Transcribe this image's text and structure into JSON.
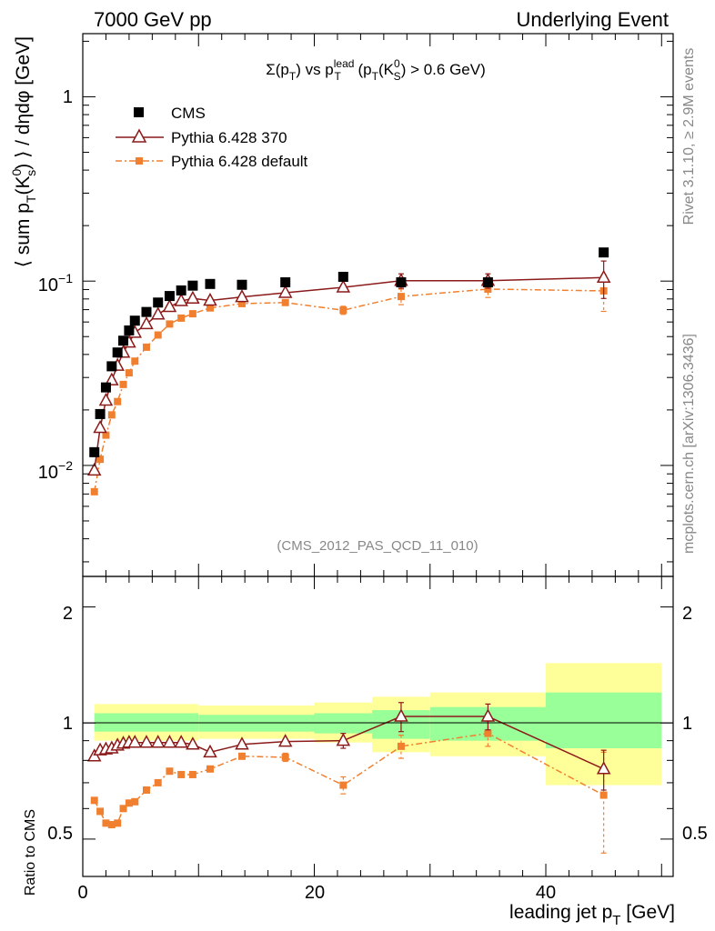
{
  "header": {
    "left": "7000 GeV pp",
    "right": "Underlying Event"
  },
  "side": {
    "rivet": "Rivet 3.1.10, ≥ 2.9M events",
    "mcplots": "mcplots.cern.ch [arXiv:1306.3436]"
  },
  "plot_title": {
    "sigma": "Σ(p",
    "sub_T": "T",
    "vs": ") vs p",
    "sup_lead": "lead",
    "paren": " (p",
    "K": "(K",
    "sup_0": "0",
    "sub_S": "S",
    "tail": ") > 0.6 GeV)"
  },
  "ylabel": {
    "pre": "⟨ sum p",
    "sub_T": "T",
    "K": "(K",
    "sup_0": "0",
    "sub_s": "s",
    "post": ") ⟩ / dηdφ [GeV]"
  },
  "xlabel": {
    "pre": "leading jet p",
    "sub_T": "T",
    "post": " [GeV]"
  },
  "ratio_ylabel": "Ratio to CMS",
  "watermark": "(CMS_2012_PAS_QCD_11_010)",
  "ticks": {
    "x": [
      "0",
      "20",
      "40"
    ],
    "main_y_1": "1",
    "main_y_base": "10",
    "main_y_exp1": "−1",
    "main_y_exp2": "−2",
    "ratio_y": [
      "0.5",
      "1",
      "2"
    ]
  },
  "legend": [
    {
      "label": "CMS",
      "color": "#000000",
      "marker": "square"
    },
    {
      "label": "Pythia 6.428 370",
      "color": "#8b1a1a",
      "marker": "open-triangle"
    },
    {
      "label": "Pythia 6.428 default",
      "color": "#f08030",
      "marker": "small-square",
      "dash": "dash-dot"
    }
  ],
  "chart_data": {
    "type": "scatter",
    "x_range": [
      0,
      51
    ],
    "main_y_range": [
      0.0025,
      2.2
    ],
    "main_y_scale": "log",
    "ratio_y_range": [
      0.4,
      2.4
    ],
    "ratio_y_scale": "log",
    "x": [
      1.0,
      1.5,
      2.0,
      2.5,
      3.0,
      3.5,
      4.0,
      4.5,
      5.5,
      6.5,
      7.5,
      8.5,
      9.5,
      11.0,
      13.75,
      17.5,
      22.5,
      27.5,
      35.0,
      45.0
    ],
    "series": [
      {
        "name": "CMS",
        "values": [
          0.0118,
          0.019,
          0.0265,
          0.0345,
          0.041,
          0.0475,
          0.054,
          0.061,
          0.068,
          0.0765,
          0.083,
          0.089,
          0.0945,
          0.0965,
          0.0955,
          0.0985,
          0.1055,
          0.0985,
          0.0985,
          0.143
        ]
      },
      {
        "name": "Pythia 6.428 370",
        "values": [
          0.0094,
          0.016,
          0.0225,
          0.029,
          0.0348,
          0.041,
          0.0465,
          0.0525,
          0.0585,
          0.066,
          0.0725,
          0.078,
          0.0805,
          0.0785,
          0.082,
          0.0865,
          0.0925,
          0.1005,
          0.1005,
          0.1045
        ],
        "errors": [
          0,
          0,
          0,
          0,
          0,
          0,
          0,
          0,
          0,
          0,
          0,
          0,
          0,
          0,
          0,
          0,
          0.003,
          0.009,
          0.009,
          0.024
        ]
      },
      {
        "name": "Pythia 6.428 default",
        "values": [
          0.0072,
          0.0108,
          0.0146,
          0.0188,
          0.0222,
          0.0275,
          0.0318,
          0.0368,
          0.0438,
          0.051,
          0.0585,
          0.063,
          0.0665,
          0.0715,
          0.0755,
          0.0765,
          0.0695,
          0.0825,
          0.0905,
          0.0885
        ],
        "errors": [
          0,
          0,
          0,
          0,
          0,
          0,
          0,
          0,
          0,
          0,
          0,
          0,
          0,
          0,
          0,
          0,
          0.0035,
          0.008,
          0.009,
          0.02
        ]
      }
    ],
    "ratio": {
      "series": [
        {
          "name": "Pythia 6.428 370",
          "values": [
            0.82,
            0.85,
            0.855,
            0.86,
            0.875,
            0.885,
            0.89,
            0.89,
            0.89,
            0.89,
            0.89,
            0.89,
            0.88,
            0.84,
            0.88,
            0.895,
            0.9,
            1.04,
            1.04,
            0.76
          ],
          "errors": [
            0,
            0,
            0,
            0,
            0,
            0,
            0,
            0,
            0,
            0,
            0,
            0,
            0,
            0,
            0,
            0,
            0.04,
            0.09,
            0.08,
            0.09
          ]
        },
        {
          "name": "Pythia 6.428 default",
          "values": [
            0.63,
            0.59,
            0.55,
            0.545,
            0.55,
            0.6,
            0.62,
            0.625,
            0.67,
            0.7,
            0.75,
            0.735,
            0.735,
            0.76,
            0.82,
            0.815,
            0.69,
            0.87,
            0.94,
            0.65
          ],
          "errors": [
            0,
            0,
            0,
            0,
            0,
            0,
            0,
            0,
            0,
            0,
            0,
            0,
            0,
            0,
            0,
            0.02,
            0.035,
            0.06,
            0.07,
            0.19
          ]
        }
      ],
      "bands": [
        {
          "x0": 1,
          "x1": 10,
          "green": [
            0.95,
            1.06
          ],
          "yellow": [
            0.9,
            1.12
          ]
        },
        {
          "x0": 10,
          "x1": 20,
          "green": [
            0.95,
            1.05
          ],
          "yellow": [
            0.91,
            1.11
          ]
        },
        {
          "x0": 20,
          "x1": 25,
          "green": [
            0.94,
            1.06
          ],
          "yellow": [
            0.89,
            1.13
          ]
        },
        {
          "x0": 25,
          "x1": 30,
          "green": [
            0.91,
            1.08
          ],
          "yellow": [
            0.84,
            1.17
          ]
        },
        {
          "x0": 30,
          "x1": 40,
          "green": [
            0.9,
            1.1
          ],
          "yellow": [
            0.82,
            1.2
          ]
        },
        {
          "x0": 40,
          "x1": 50,
          "green": [
            0.86,
            1.2
          ],
          "yellow": [
            0.69,
            1.43
          ]
        }
      ],
      "band_colors": {
        "green": "#99ff99",
        "yellow": "#ffff99"
      }
    }
  }
}
